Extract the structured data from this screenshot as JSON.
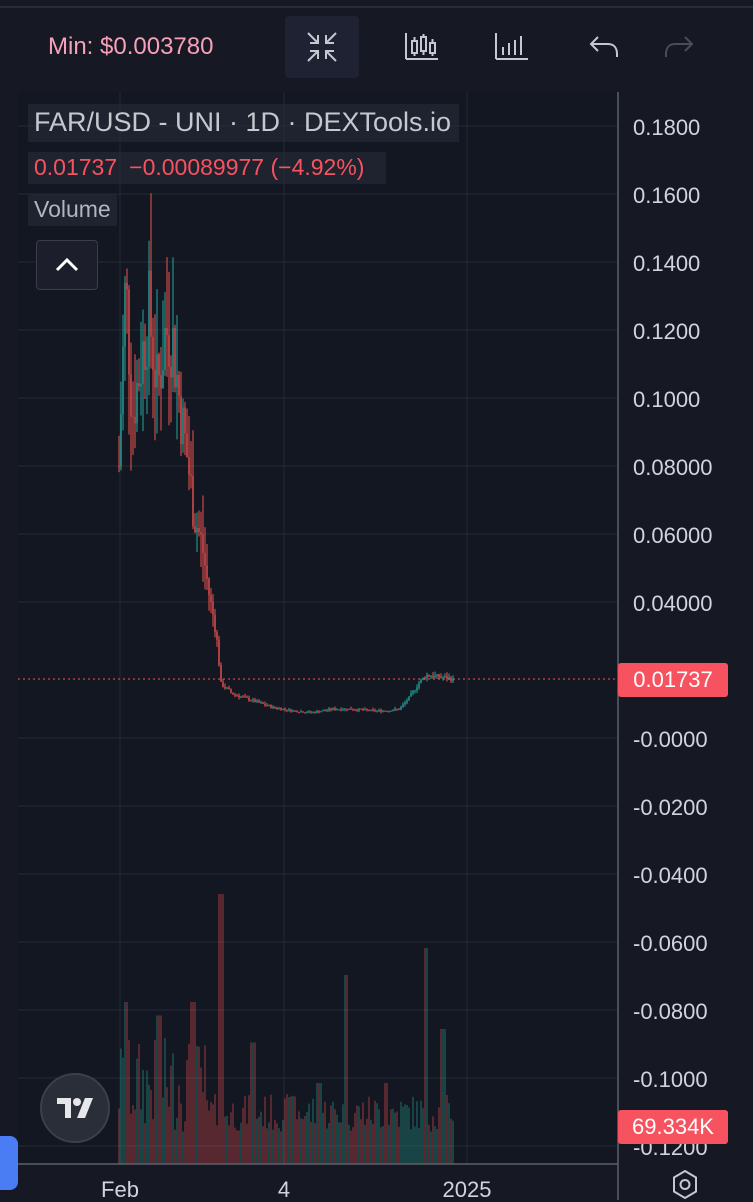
{
  "toolbar": {
    "min_label": "Min: $0.003780",
    "icons": [
      "exit-fullscreen-icon",
      "indicators-icon",
      "bar-chart-icon",
      "undo-icon",
      "redo-icon"
    ]
  },
  "legend": {
    "title": "FAR/USD - UNI · 1D · DEXTools.io",
    "last_price": "0.01737",
    "change": "−0.00089977 (−4.92%)",
    "volume_label": "Volume"
  },
  "price_tag": "0.01737",
  "volume_tag": "69.334K",
  "colors": {
    "up": "#26a69a",
    "down": "#ef5350",
    "background": "#131722",
    "grid": "#262a36",
    "price_tag": "#f7525f"
  },
  "chart_data": {
    "type": "candlestick",
    "title": "FAR/USD - UNI · 1D · DEXTools.io",
    "y_axis_ticks": [
      "0.1800",
      "0.1600",
      "0.1400",
      "0.1200",
      "0.1000",
      "0.08000",
      "0.06000",
      "0.04000",
      "0.01737",
      "-0.0000",
      "-0.0200",
      "-0.0400",
      "-0.0600",
      "-0.0800",
      "-0.1000",
      "-0.1200"
    ],
    "y_tick_values": [
      0.18,
      0.16,
      0.14,
      0.12,
      0.1,
      0.08,
      0.06,
      0.04,
      0.01737,
      0.0,
      -0.02,
      -0.04,
      -0.06,
      -0.08,
      -0.1,
      -0.12
    ],
    "x_axis_ticks": [
      "Feb",
      "4",
      "2025"
    ],
    "last_price": 0.01737,
    "price_path": [
      [
        0.0,
        0.08
      ],
      [
        0.02,
        0.135
      ],
      [
        0.04,
        0.095
      ],
      [
        0.065,
        0.11
      ],
      [
        0.09,
        0.125
      ],
      [
        0.115,
        0.102
      ],
      [
        0.14,
        0.12
      ],
      [
        0.16,
        0.118
      ],
      [
        0.185,
        0.096
      ],
      [
        0.205,
        0.082
      ],
      [
        0.225,
        0.066
      ],
      [
        0.25,
        0.056
      ],
      [
        0.27,
        0.042
      ],
      [
        0.29,
        0.032
      ],
      [
        0.305,
        0.016
      ],
      [
        0.34,
        0.013
      ],
      [
        0.4,
        0.011
      ],
      [
        0.46,
        0.009
      ],
      [
        0.52,
        0.008
      ],
      [
        0.58,
        0.0075
      ],
      [
        0.64,
        0.0085
      ],
      [
        0.7,
        0.0085
      ],
      [
        0.76,
        0.008
      ],
      [
        0.8,
        0.008
      ],
      [
        0.84,
        0.0085
      ],
      [
        0.87,
        0.012
      ],
      [
        0.9,
        0.0165
      ],
      [
        0.92,
        0.0185
      ],
      [
        1.0,
        0.01737
      ]
    ],
    "volume_bursts": [
      [
        0.02,
        0.6
      ],
      [
        0.12,
        0.55
      ],
      [
        0.22,
        0.6
      ],
      [
        0.305,
        1.0
      ],
      [
        0.4,
        0.45
      ],
      [
        0.52,
        0.25
      ],
      [
        0.6,
        0.3
      ],
      [
        0.68,
        0.7
      ],
      [
        0.8,
        0.3
      ],
      [
        0.92,
        0.8
      ],
      [
        0.97,
        0.5
      ]
    ],
    "grid": true
  }
}
